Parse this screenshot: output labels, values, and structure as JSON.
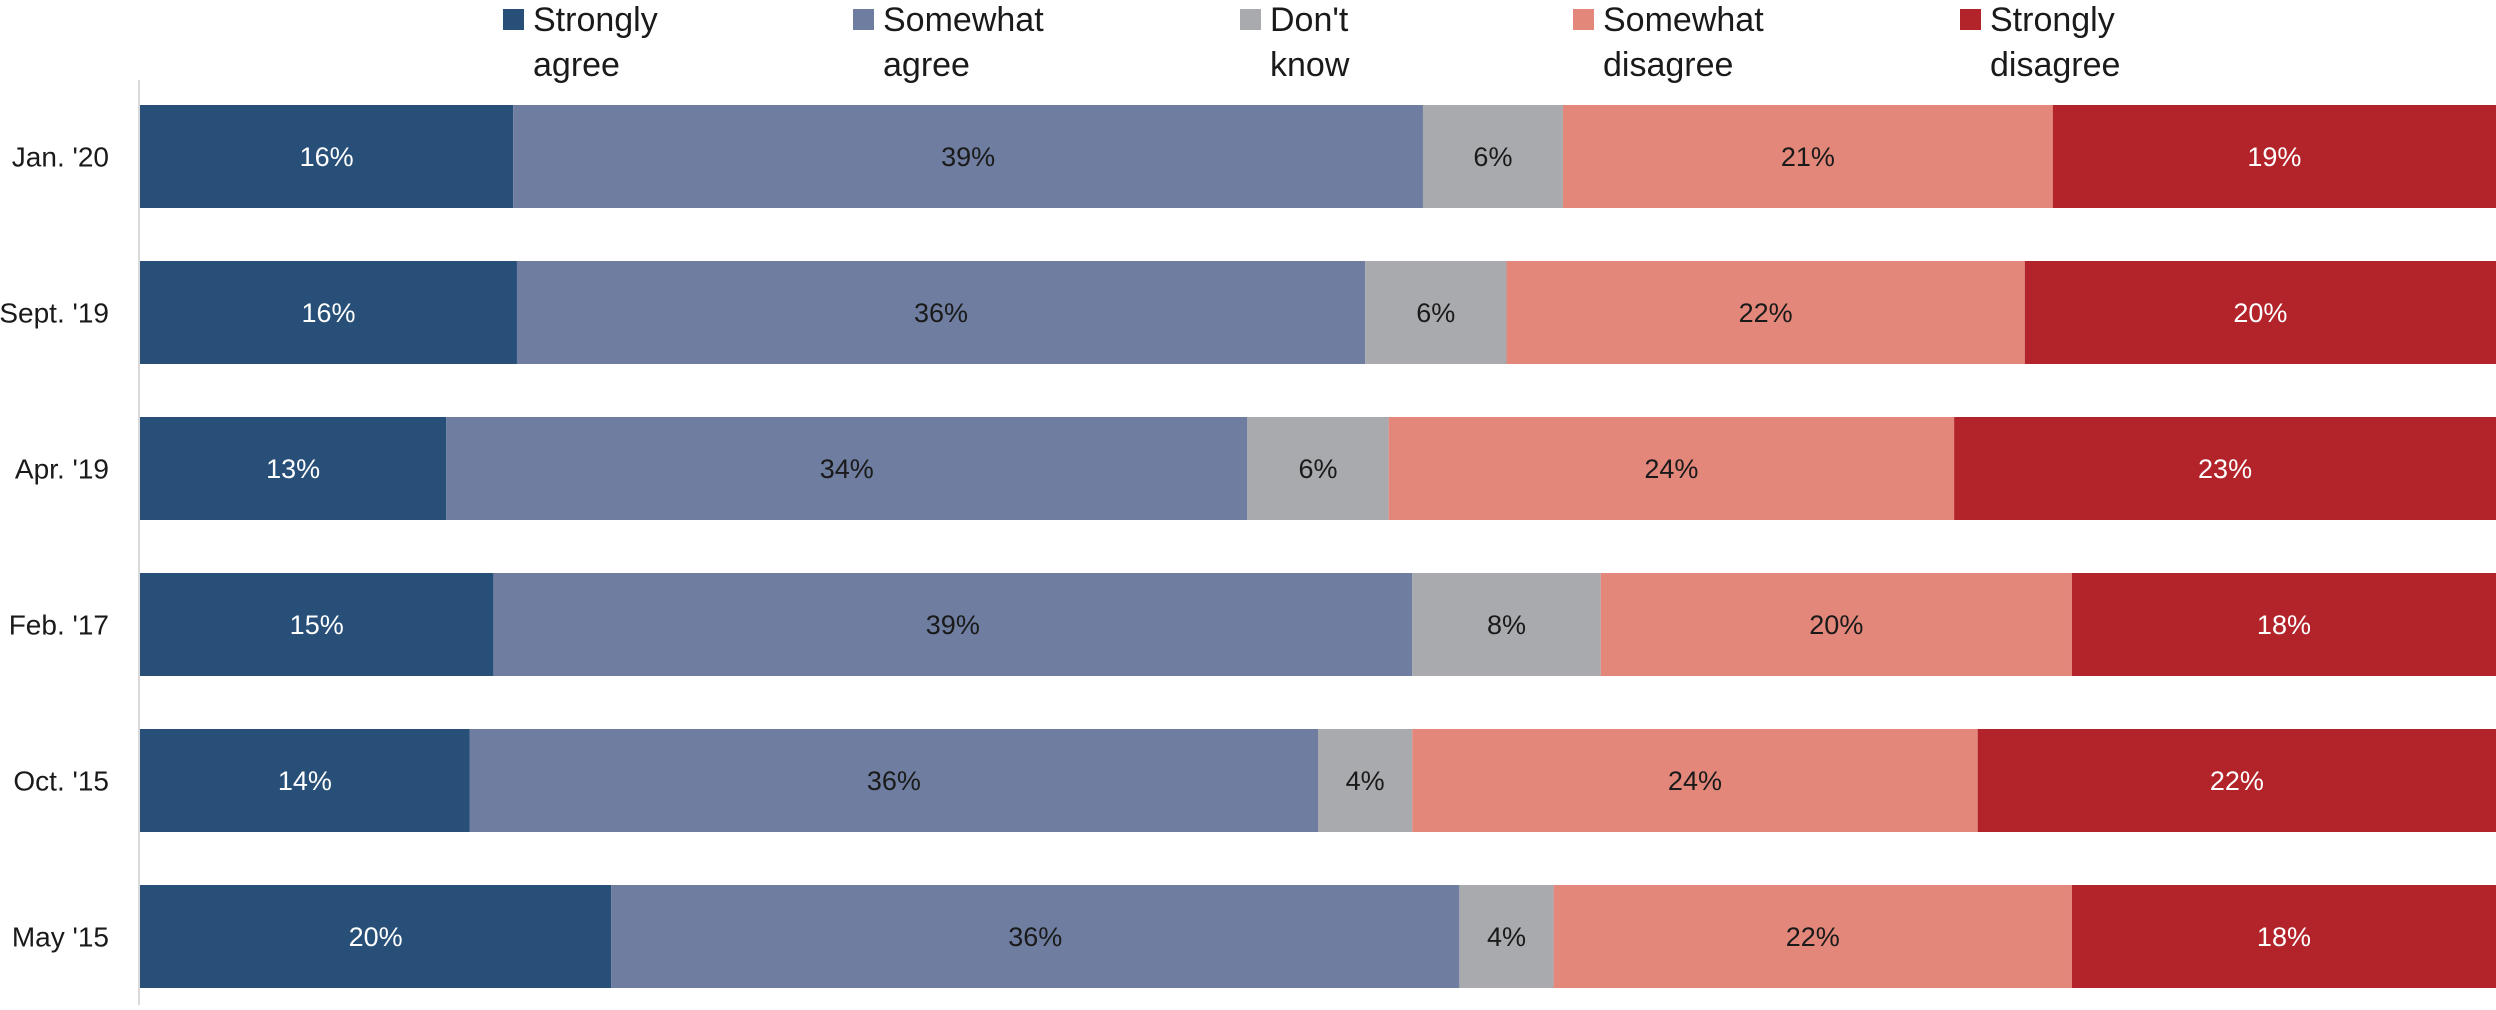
{
  "chart_data": {
    "type": "bar",
    "orientation": "horizontal",
    "stacked": true,
    "normalized": true,
    "categories": [
      "Jan. '20",
      "Sept. '19",
      "Apr. '19",
      "Feb. '17",
      "Oct. '15",
      "May '15"
    ],
    "series": [
      {
        "name": "Strongly agree",
        "legend_lines": [
          "Strongly",
          "agree"
        ],
        "color": "#284f78",
        "label_color": "#ffffff",
        "values": [
          16,
          16,
          13,
          15,
          14,
          20
        ],
        "labels": [
          "16%",
          "16%",
          "13%",
          "15%",
          "14%",
          "20%"
        ]
      },
      {
        "name": "Somewhat agree",
        "legend_lines": [
          "Somewhat",
          "agree"
        ],
        "color": "#6e7da0",
        "label_color": "#1a1a1a",
        "values": [
          39,
          36,
          34,
          39,
          36,
          36
        ],
        "labels": [
          "39%",
          "36%",
          "34%",
          "39%",
          "36%",
          "36%"
        ]
      },
      {
        "name": "Don't know",
        "legend_lines": [
          "Don't",
          "know"
        ],
        "color": "#a9aaae",
        "label_color": "#1a1a1a",
        "values": [
          6,
          6,
          6,
          8,
          4,
          4
        ],
        "labels": [
          "6%",
          "6%",
          "6%",
          "8%",
          "4%",
          "4%"
        ]
      },
      {
        "name": "Somewhat disagree",
        "legend_lines": [
          "Somewhat",
          "disagree"
        ],
        "color": "#e2877a",
        "label_color": "#1a1a1a",
        "values": [
          21,
          22,
          24,
          20,
          24,
          22
        ],
        "labels": [
          "21%",
          "22%",
          "24%",
          "20%",
          "24%",
          "22%"
        ]
      },
      {
        "name": "Strongly disagree",
        "legend_lines": [
          "Strongly",
          "disagree"
        ],
        "color": "#b2242a",
        "label_color": "#ffffff",
        "values": [
          19,
          20,
          23,
          18,
          22,
          18
        ],
        "labels": [
          "19%",
          "20%",
          "23%",
          "18%",
          "22%",
          "18%"
        ]
      }
    ],
    "title": "",
    "xlabel": "",
    "ylabel": "",
    "legend_position": "top",
    "grid": false
  }
}
